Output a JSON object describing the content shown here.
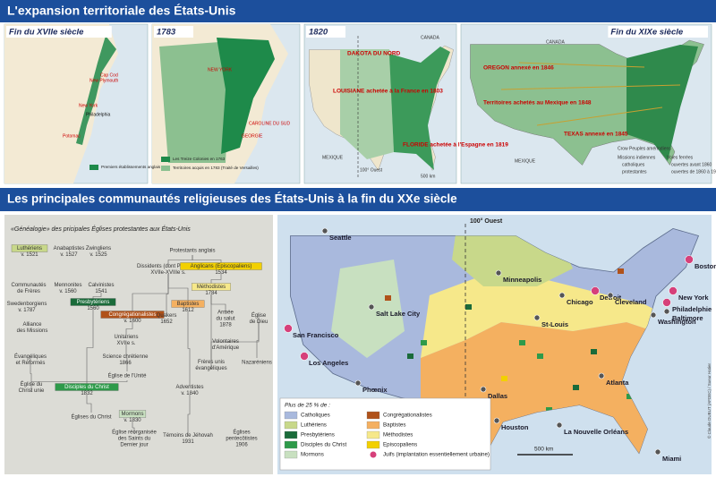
{
  "header": {
    "title": "L'expansion territoriale des États-Unis"
  },
  "maps": [
    {
      "title": "Fin du XVIIe siècle",
      "labels": [
        "Cap Cod",
        "New Plymouth",
        "New York",
        "Philadelphia",
        "Potomac"
      ],
      "legend": [
        {
          "label": "Premiers établissements anglais",
          "color": "#1e8a4a"
        }
      ]
    },
    {
      "title": "1783",
      "labels": [
        "NEW YORK",
        "CAROLINE DU SUD",
        "GEORGIE"
      ],
      "legend": [
        {
          "label": "Les Treize Colonies en 1763",
          "color": "#1e8a4a"
        },
        {
          "label": "Territoires acquis en 1783 (Traité de Versailles)",
          "color": "#8cc090"
        }
      ]
    },
    {
      "title": "1820",
      "labels": [
        "CANADA",
        "DAKOTA DU NORD",
        "LOUISIANE achetée à la France en 1803",
        "FLORIDE achetée à l'Espagne en 1819",
        "MEXIQUE",
        "100° Ouest",
        "500 km"
      ],
      "legend": []
    },
    {
      "title": "Fin du XIXe siècle",
      "labels": [
        "CANADA",
        "OREGON annexé en 1846",
        "Territoires achetés au Mexique en 1848",
        "TEXAS annexé en 1845",
        "MEXIQUE",
        "Crow Peuples amérindiens",
        "Missions indiennes",
        "catholiques",
        "protestantes",
        "Voies ferrées",
        "ouvertes avant 1860",
        "ouvertes de 1860 à 1900"
      ],
      "legend": []
    }
  ],
  "section": {
    "title": "Les principales communautés religieuses des États-Unis à la fin du XXe siècle"
  },
  "genealogy": {
    "title": "«Généalogie» des pricipales Églises protestantes aux États-Unis",
    "nodes": [
      {
        "lines": [
          "Luthériens",
          "v. 1521"
        ],
        "color": "#c8d88a"
      },
      {
        "lines": [
          "Anabaptistes",
          "v. 1527"
        ]
      },
      {
        "lines": [
          "Zwingliens",
          "v. 1525"
        ]
      },
      {
        "lines": [
          "Protestants anglais"
        ]
      },
      {
        "lines": [
          "Dissidents (dont Puritains)",
          "XVIIe-XVIIIe s."
        ]
      },
      {
        "lines": [
          "Anglicans (Episcopaliens)",
          "1534"
        ],
        "color": "#f2d000"
      },
      {
        "lines": [
          "Communautés",
          "de Frères"
        ]
      },
      {
        "lines": [
          "Mennonites",
          "v. 1560"
        ]
      },
      {
        "lines": [
          "Calvinistes",
          "1541"
        ]
      },
      {
        "lines": [
          "Méthodistes",
          "1784"
        ],
        "color": "#f6e88a"
      },
      {
        "lines": [
          "Swedenborgiens",
          "v. 1787"
        ]
      },
      {
        "lines": [
          "Presbytériens",
          "1560"
        ],
        "color": "#1a6b3a"
      },
      {
        "lines": [
          "Congrégationalistes",
          "v. 1600"
        ],
        "color": "#b0521a"
      },
      {
        "lines": [
          "Baptistes",
          "1612"
        ],
        "color": "#f4b060"
      },
      {
        "lines": [
          "Quakers",
          "1652"
        ]
      },
      {
        "lines": [
          "Armée",
          "du salut",
          "1878"
        ]
      },
      {
        "lines": [
          "Église",
          "de Dieu"
        ]
      },
      {
        "lines": [
          "Alliance",
          "des Missions"
        ]
      },
      {
        "lines": [
          "Unitariens",
          "XVIIe s."
        ]
      },
      {
        "lines": [
          "Volontaires",
          "d'Amérique"
        ]
      },
      {
        "lines": [
          "Évangéliques",
          "et Réformés"
        ]
      },
      {
        "lines": [
          "Science chrétienne",
          "1866"
        ]
      },
      {
        "lines": [
          "Frères unis",
          "évangéliques"
        ]
      },
      {
        "lines": [
          "Nazaréniens"
        ]
      },
      {
        "lines": [
          "Église de l'Unité"
        ]
      },
      {
        "lines": [
          "Église du",
          "Christ unie"
        ]
      },
      {
        "lines": [
          "Disciples du Christ",
          "1832"
        ],
        "color": "#2e9a4a"
      },
      {
        "lines": [
          "Adventistes",
          "v. 1840"
        ]
      },
      {
        "lines": [
          "Églises du Christ"
        ]
      },
      {
        "lines": [
          "Mormons",
          "v. 1830"
        ],
        "color": "#c8e0c0"
      },
      {
        "lines": [
          "Église réorganisée",
          "des Saints du",
          "Dernier jour"
        ]
      },
      {
        "lines": [
          "Témoins de Jéhovah",
          "1931"
        ]
      },
      {
        "lines": [
          "Églises",
          "pentecôtistes",
          "1906"
        ]
      }
    ]
  },
  "religion_map": {
    "meridian": "100° Ouest",
    "cities": [
      {
        "name": "Seattle",
        "jewish": false
      },
      {
        "name": "San Francisco",
        "jewish": true
      },
      {
        "name": "Los Angeles",
        "jewish": true
      },
      {
        "name": "Salt Lake City",
        "jewish": false
      },
      {
        "name": "Phœnix",
        "jewish": false
      },
      {
        "name": "Minneapolis",
        "jewish": false
      },
      {
        "name": "Chicago",
        "jewish": false
      },
      {
        "name": "Detroit",
        "jewish": true
      },
      {
        "name": "Cleveland",
        "jewish": false
      },
      {
        "name": "St-Louis",
        "jewish": false
      },
      {
        "name": "Washington",
        "jewish": false
      },
      {
        "name": "Philadelphie",
        "jewish": true
      },
      {
        "name": "Baltimore",
        "jewish": false
      },
      {
        "name": "New York",
        "jewish": true
      },
      {
        "name": "Boston",
        "jewish": true
      },
      {
        "name": "Dallas",
        "jewish": false
      },
      {
        "name": "Houston",
        "jewish": false
      },
      {
        "name": "La Nouvelle Orléans",
        "jewish": false
      },
      {
        "name": "Atlanta",
        "jewish": false
      },
      {
        "name": "Miami",
        "jewish": false
      }
    ],
    "legend_title": "Plus de 25 % de :",
    "legend": [
      {
        "label": "Catholiques",
        "color": "#a9b9dd"
      },
      {
        "label": "Luthériens",
        "color": "#c8d88a"
      },
      {
        "label": "Presbytériens",
        "color": "#1a6b3a"
      },
      {
        "label": "Disciples du Christ",
        "color": "#2e9a4a"
      },
      {
        "label": "Mormons",
        "color": "#c8e0c0"
      },
      {
        "label": "Congrégationalistes",
        "color": "#b0521a"
      },
      {
        "label": "Baptistes",
        "color": "#f4b060"
      },
      {
        "label": "Méthodistes",
        "color": "#f6e88a"
      },
      {
        "label": "Episcopaliens",
        "color": "#f2d000"
      },
      {
        "label": "Juifs (implantation essentiellement urbaine)",
        "color": "#d6407a"
      }
    ],
    "scale": "500 km",
    "credit": "© Claude DUBUT (AFDEC) / Sueur Hatier"
  }
}
